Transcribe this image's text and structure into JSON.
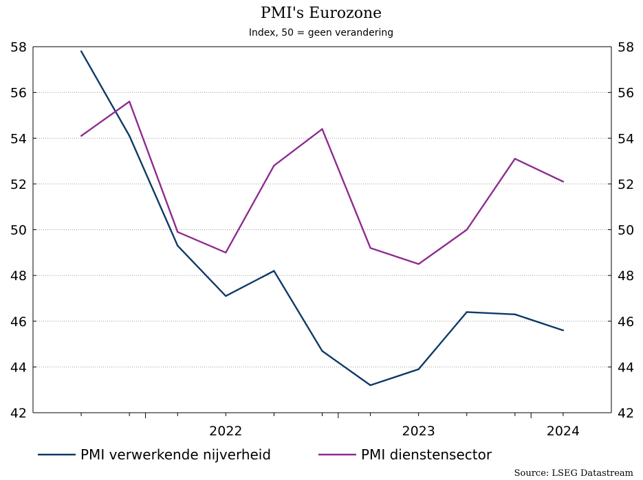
{
  "chart_data": {
    "type": "line",
    "title": "PMI's Eurozone",
    "subtitle": "Index, 50 = geen verandering",
    "source": "Source: LSEG Datastream",
    "ylim": [
      42,
      58
    ],
    "yticks": [
      42,
      44,
      46,
      48,
      50,
      52,
      54,
      56,
      58
    ],
    "ytick_labels": [
      "42",
      "44",
      "46",
      "48",
      "50",
      "52",
      "54",
      "56",
      "58"
    ],
    "x_axis_labels": [
      "2022",
      "2023",
      "2024"
    ],
    "grid": true,
    "legend_position": "bottom",
    "x": [
      "2021-09",
      "2021-12",
      "2022-03",
      "2022-06",
      "2022-09",
      "2022-12",
      "2023-03",
      "2023-06",
      "2023-09",
      "2023-12",
      "2024-03"
    ],
    "series": [
      {
        "name": "PMI verwerkende nijverheid",
        "color": "#0d3a66",
        "values": [
          57.8,
          54.1,
          49.3,
          47.1,
          48.2,
          44.7,
          43.2,
          43.9,
          46.4,
          46.3,
          45.6
        ]
      },
      {
        "name": "PMI dienstensector",
        "color": "#8e2b8f",
        "values": [
          54.1,
          55.6,
          49.9,
          49.0,
          52.8,
          54.4,
          49.2,
          48.5,
          50.0,
          53.1,
          52.1
        ]
      }
    ]
  }
}
